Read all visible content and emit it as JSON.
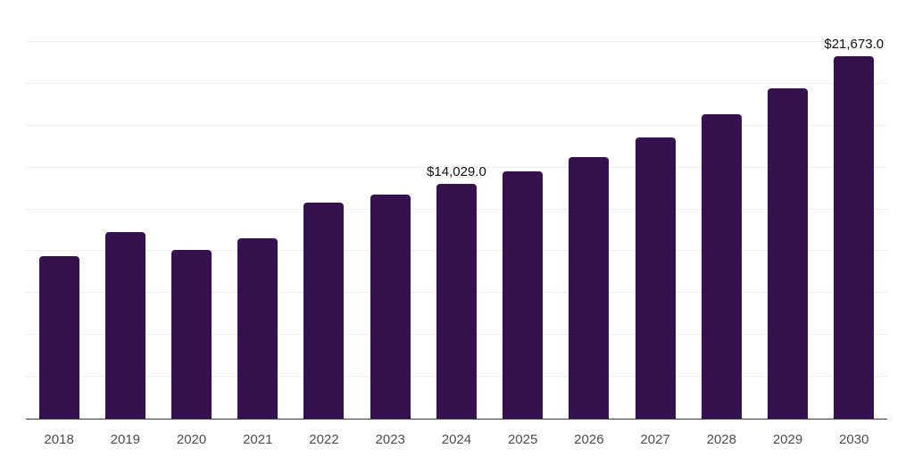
{
  "chart_data": {
    "type": "bar",
    "title": "",
    "xlabel": "",
    "ylabel": "",
    "categories": [
      "2018",
      "2019",
      "2020",
      "2021",
      "2022",
      "2023",
      "2024",
      "2025",
      "2026",
      "2027",
      "2028",
      "2029",
      "2030"
    ],
    "values": [
      9700,
      11160,
      10080,
      10790,
      12930,
      13400,
      14029,
      14790,
      15660,
      16800,
      18220,
      19770,
      21673
    ],
    "ylim": [
      0,
      25000
    ],
    "gridline_step": 2500,
    "grid": true,
    "legend": false,
    "data_labels": [
      {
        "category": "2024",
        "text": "$14,029.0"
      },
      {
        "category": "2030",
        "text": "$21,673.0"
      }
    ],
    "colors": {
      "bar": "#361150",
      "gridline": "#efefef",
      "axis_line": "#3a3a3a",
      "tick_label": "#4d4d4d",
      "data_label": "#111111",
      "background": "#ffffff"
    }
  }
}
